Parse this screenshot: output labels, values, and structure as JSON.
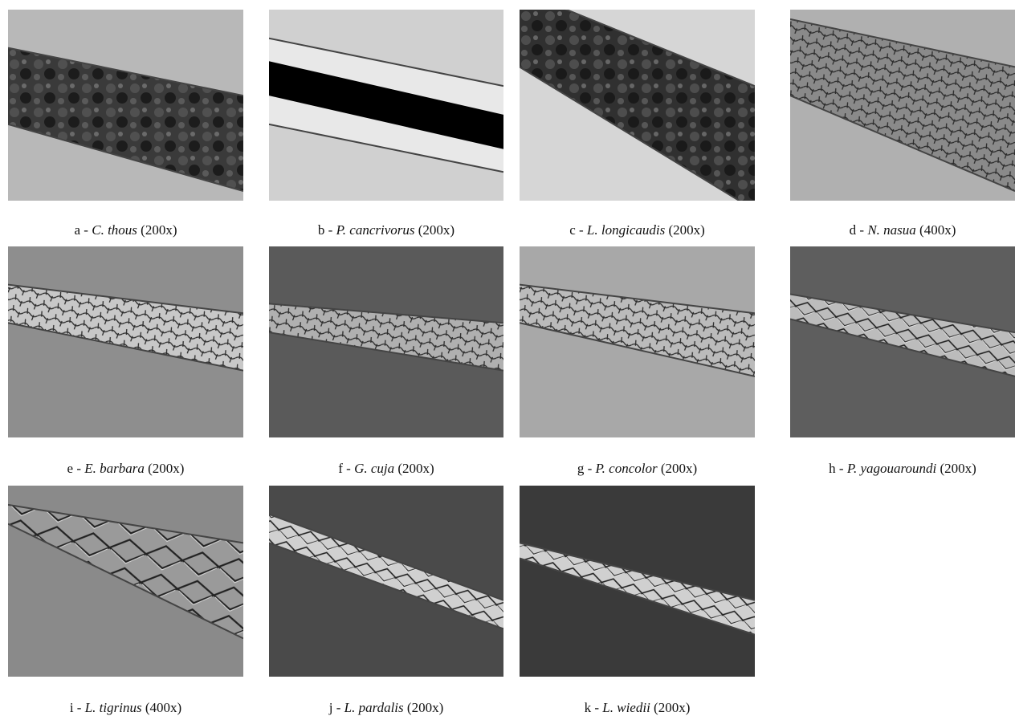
{
  "panels": [
    {
      "prefix": "a -",
      "species": "C. thous",
      "magnification": "(200x)"
    },
    {
      "prefix": "b -",
      "species": "P. cancrivorus",
      "magnification": "(200x)"
    },
    {
      "prefix": "c -",
      "species": "L. longicaudis",
      "magnification": "(200x)"
    },
    {
      "prefix": "d -",
      "species": "N. nasua",
      "magnification": "(400x)"
    },
    {
      "prefix": "e -",
      "species": "E. barbara",
      "magnification": "(200x)"
    },
    {
      "prefix": "f -",
      "species": "G. cuja",
      "magnification": "(200x)"
    },
    {
      "prefix": "g -",
      "species": "P. concolor",
      "magnification": "(200x)"
    },
    {
      "prefix": "h -",
      "species": "P. yagouaroundi",
      "magnification": "(200x)"
    },
    {
      "prefix": "i -",
      "species": "L. tigrinus",
      "magnification": "(400x)"
    },
    {
      "prefix": "j -",
      "species": "L. pardalis",
      "magnification": "(200x)"
    },
    {
      "prefix": "k -",
      "species": "L. wiedii",
      "magnification": "(200x)"
    }
  ]
}
